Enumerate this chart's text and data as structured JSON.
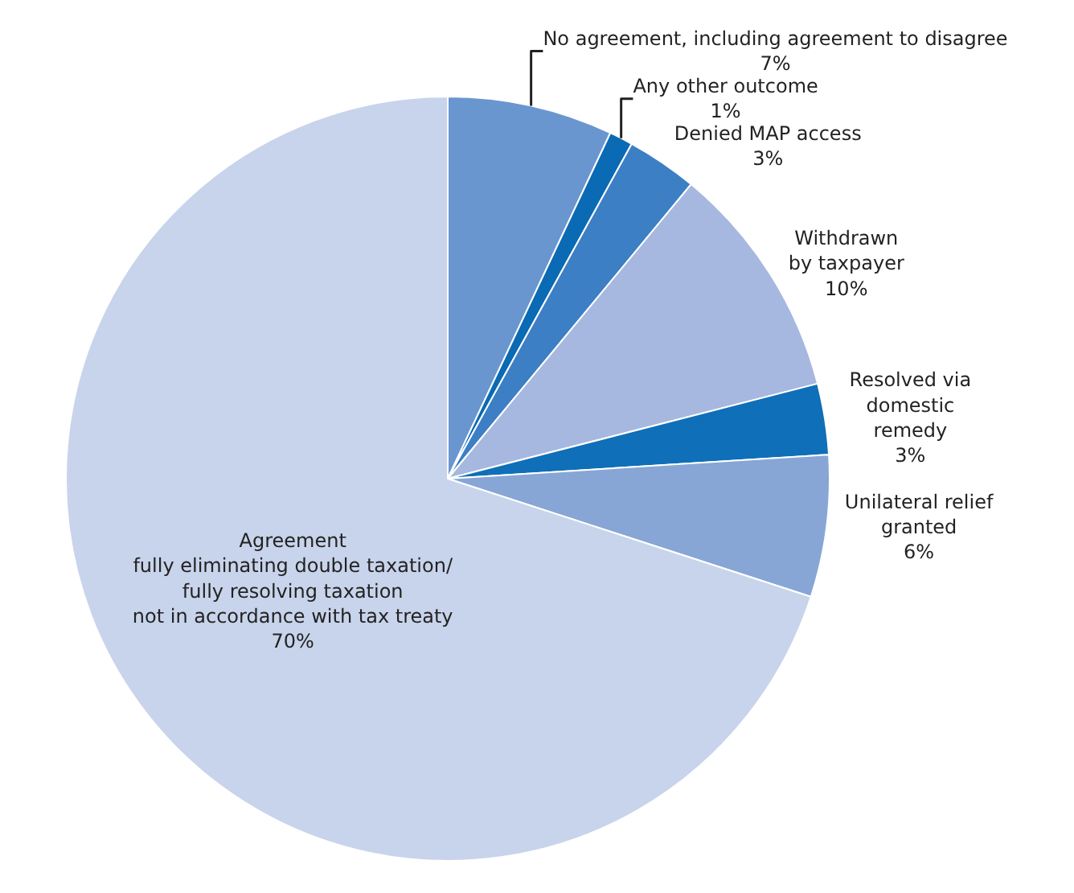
{
  "chart_data": {
    "type": "pie",
    "categories": [
      "No agreement, including agreement to disagree",
      "Any other outcome",
      "Denied MAP access",
      "Withdrawn\nby taxpayer",
      "Resolved via\ndomestic\nremedy",
      "Unilateral relief\ngranted",
      "Agreement\nfully eliminating double taxation/\nfully resolving taxation\nnot in accordance with tax treaty"
    ],
    "values": [
      7,
      1,
      3,
      10,
      3,
      6,
      70
    ],
    "colors": [
      "#6a96cf",
      "#0a6ab4",
      "#3c7fc4",
      "#a6b8df",
      "#0f6fb8",
      "#87a6d6",
      "#c8d4eb"
    ],
    "value_labels": [
      "7%",
      "1%",
      "3%",
      "10%",
      "3%",
      "6%",
      "70%"
    ]
  }
}
